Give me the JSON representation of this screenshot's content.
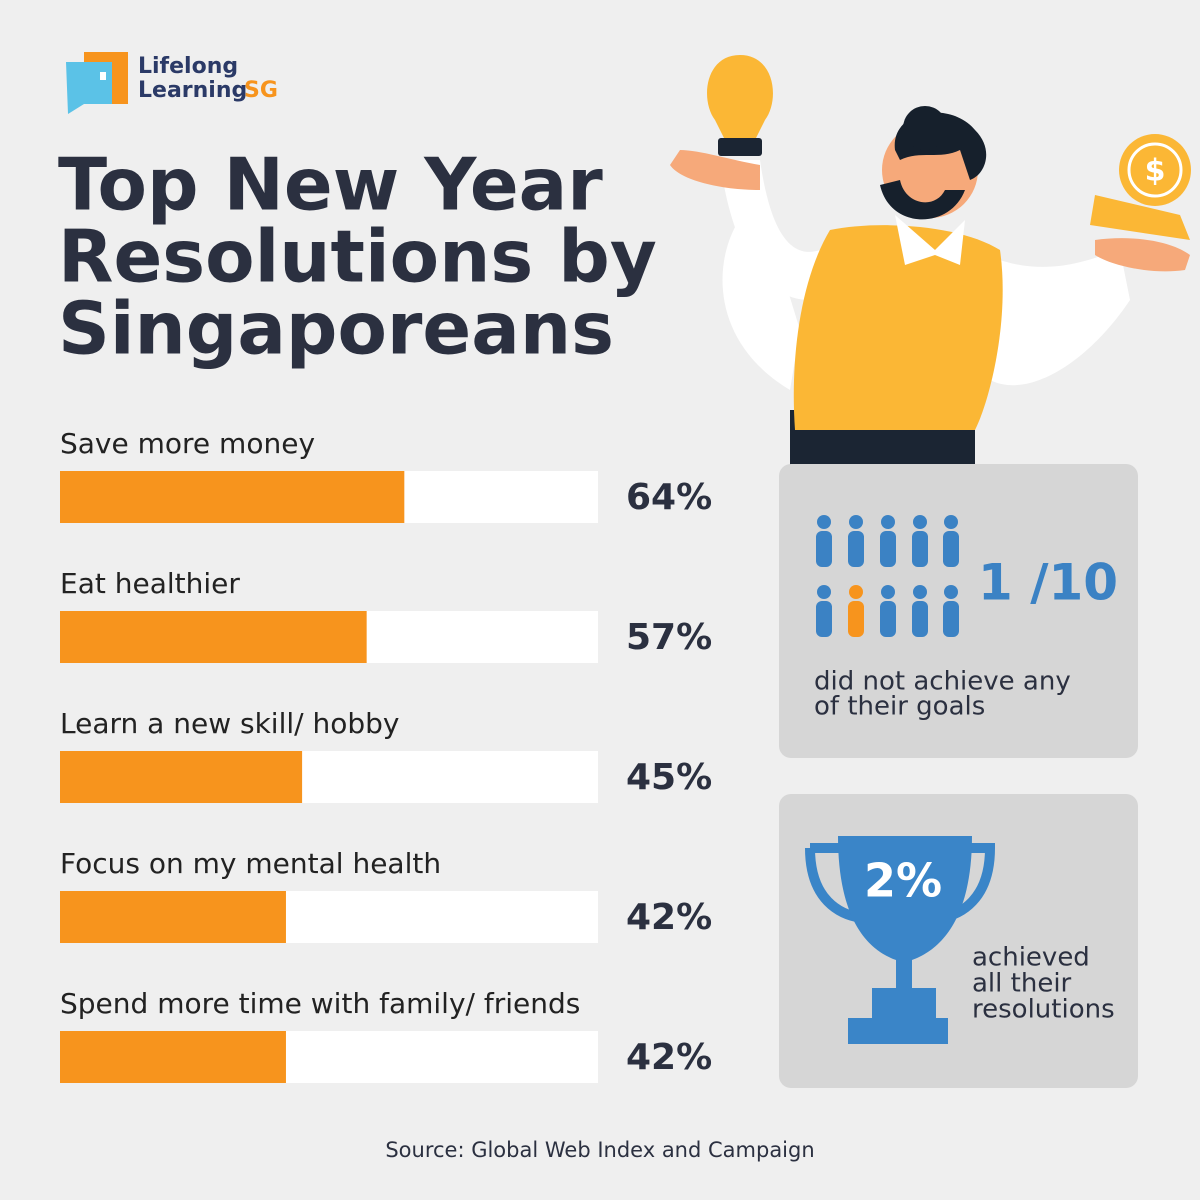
{
  "logo": {
    "line1": "Lifelong",
    "line2": "Learning",
    "suffix": "SG"
  },
  "chart_data": {
    "type": "bar",
    "orientation": "horizontal",
    "title": [
      "Top New Year",
      "Resolutions by",
      "Singaporeans"
    ],
    "categories": [
      "Save more money",
      "Eat healthier",
      "Learn a new skill/ hobby",
      "Focus on my mental health",
      "Spend more time with family/ friends"
    ],
    "values": [
      64,
      57,
      45,
      42,
      42
    ],
    "value_labels": [
      "64%",
      "57%",
      "45%",
      "42%",
      "42%"
    ],
    "color": "#f7941d",
    "track_color": "#ffffff",
    "xlim": [
      0,
      100
    ]
  },
  "stats": [
    {
      "headline": "1 /10",
      "caption": [
        "did not achieve any",
        "of their goals"
      ]
    },
    {
      "headline": "2%",
      "caption": [
        "achieved",
        "all their",
        "resolutions"
      ]
    }
  ],
  "source": "Source: Global Web Index and Campaign"
}
